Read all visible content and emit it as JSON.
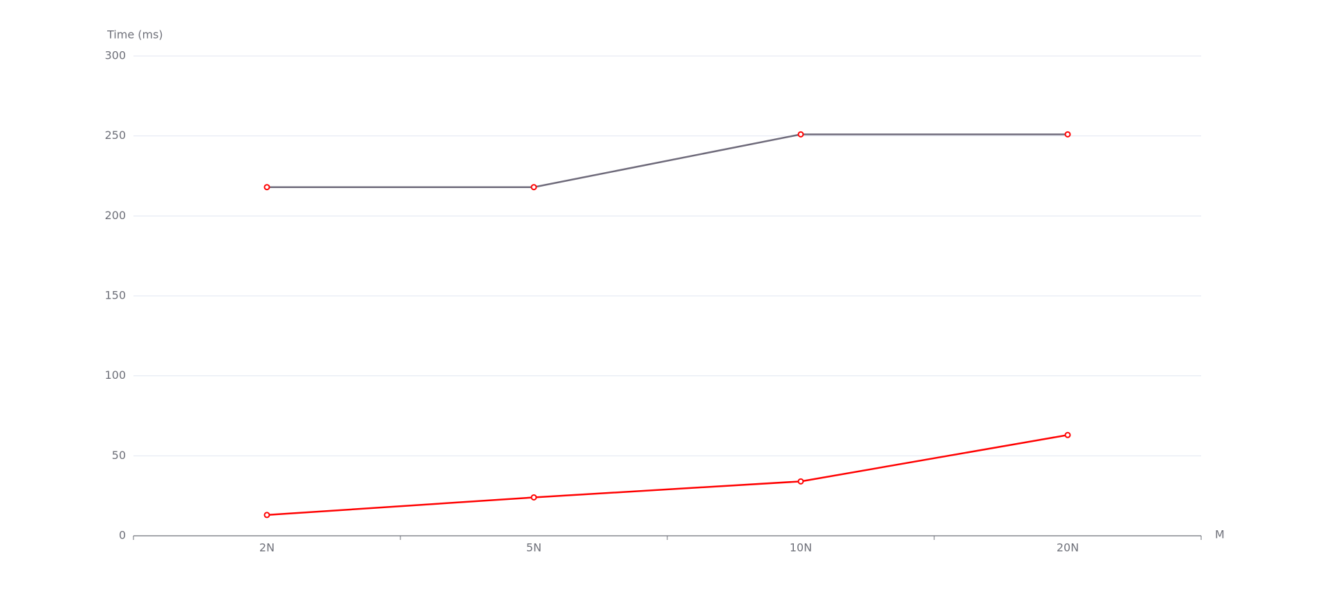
{
  "chart_data": {
    "type": "line",
    "y_axis_label": "Time (ms)",
    "x_axis_label": "M",
    "categories": [
      "2N",
      "5N",
      "10N",
      "20N"
    ],
    "series": [
      {
        "color": "#6e6a7a",
        "values": [
          218,
          218,
          251,
          251
        ]
      },
      {
        "color": "#ff0000",
        "values": [
          13,
          24,
          34,
          63
        ]
      }
    ],
    "marker_color": "#ff0000",
    "ylim": [
      0,
      300
    ],
    "yticks": [
      0,
      50,
      100,
      150,
      200,
      250,
      300
    ],
    "grid": true
  }
}
